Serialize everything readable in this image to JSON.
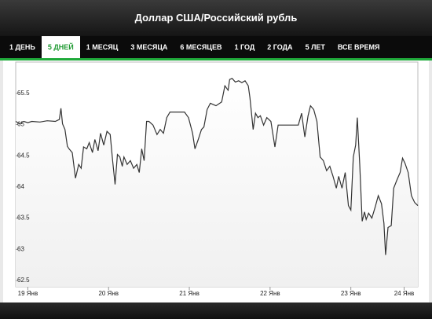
{
  "chart_data": {
    "type": "area",
    "title": "Доллар США/Российский рубль",
    "tabs": [
      "1 ДЕНЬ",
      "5 ДНЕЙ",
      "1 МЕСЯЦ",
      "3 МЕСЯЦА",
      "6 МЕСЯЦЕВ",
      "1 ГОД",
      "2 ГОДА",
      "5 ЛЕТ",
      "ВСЕ ВРЕМЯ"
    ],
    "active_tab": 1,
    "x": [
      -0.15,
      -0.1,
      -0.05,
      0,
      0.05,
      0.15,
      0.24,
      0.34,
      0.39,
      0.41,
      0.43,
      0.46,
      0.49,
      0.51,
      0.55,
      0.59,
      0.63,
      0.66,
      0.69,
      0.73,
      0.76,
      0.8,
      0.83,
      0.87,
      0.9,
      0.94,
      0.98,
      1.02,
      1.05,
      1.08,
      1.11,
      1.14,
      1.17,
      1.19,
      1.23,
      1.27,
      1.31,
      1.35,
      1.38,
      1.41,
      1.44,
      1.47,
      1.5,
      1.55,
      1.6,
      1.64,
      1.68,
      1.72,
      1.76,
      1.84,
      1.94,
      1.99,
      2.04,
      2.07,
      2.11,
      2.15,
      2.18,
      2.22,
      2.26,
      2.33,
      2.4,
      2.44,
      2.48,
      2.5,
      2.53,
      2.57,
      2.61,
      2.65,
      2.69,
      2.73,
      2.75,
      2.79,
      2.82,
      2.85,
      2.88,
      2.92,
      2.96,
      3.01,
      3.06,
      3.1,
      3.16,
      3.25,
      3.35,
      3.39,
      3.43,
      3.47,
      3.5,
      3.54,
      3.58,
      3.62,
      3.66,
      3.7,
      3.74,
      3.78,
      3.82,
      3.85,
      3.89,
      3.93,
      3.97,
      4.0,
      4.03,
      4.06,
      4.08,
      4.11,
      4.14,
      4.17,
      4.19,
      4.22,
      4.26,
      4.3,
      4.34,
      4.38,
      4.41,
      4.43,
      4.46,
      4.5,
      4.53,
      4.57,
      4.61,
      4.64,
      4.67,
      4.71,
      4.75,
      4.79,
      4.83
    ],
    "values": [
      65.05,
      65.01,
      65.05,
      65.03,
      65.05,
      65.04,
      65.06,
      65.05,
      65.08,
      65.26,
      65.01,
      64.92,
      64.65,
      64.61,
      64.55,
      64.14,
      64.36,
      64.3,
      64.64,
      64.61,
      64.71,
      64.55,
      64.76,
      64.58,
      64.86,
      64.67,
      64.89,
      64.84,
      64.42,
      64.04,
      64.52,
      64.48,
      64.33,
      64.48,
      64.36,
      64.42,
      64.3,
      64.36,
      64.23,
      64.61,
      64.42,
      65.05,
      65.05,
      64.99,
      64.84,
      64.92,
      64.86,
      65.11,
      65.2,
      65.2,
      65.2,
      65.11,
      64.86,
      64.61,
      64.76,
      64.92,
      64.96,
      65.24,
      65.34,
      65.3,
      65.36,
      65.62,
      65.55,
      65.72,
      65.74,
      65.68,
      65.7,
      65.67,
      65.7,
      65.62,
      65.43,
      64.92,
      65.18,
      65.11,
      65.14,
      64.99,
      65.11,
      65.05,
      64.64,
      64.99,
      64.99,
      64.99,
      64.99,
      65.18,
      64.8,
      65.14,
      65.3,
      65.24,
      65.05,
      64.48,
      64.42,
      64.26,
      64.33,
      64.17,
      63.98,
      64.17,
      63.98,
      64.23,
      63.7,
      63.63,
      64.48,
      64.67,
      65.11,
      64.36,
      63.45,
      63.6,
      63.48,
      63.58,
      63.5,
      63.67,
      63.86,
      63.73,
      63.42,
      62.91,
      63.35,
      63.38,
      63.98,
      64.11,
      64.23,
      64.46,
      64.38,
      64.23,
      63.86,
      63.75,
      63.7
    ],
    "color": "#333333",
    "fill": "#f0f0f0",
    "xlim": [
      -0.15,
      4.83
    ],
    "xticks": [
      {
        "value": 0,
        "label": "19 Янв"
      },
      {
        "value": 1,
        "label": "20 Янв"
      },
      {
        "value": 2,
        "label": "21 Янв"
      },
      {
        "value": 3,
        "label": "22 Янв"
      },
      {
        "value": 4,
        "label": "23 Янв"
      },
      {
        "value": 4.66,
        "label": "24 Янв"
      }
    ],
    "ylim": [
      62.4,
      66
    ],
    "yticks": [
      62.5,
      63,
      63.5,
      64,
      64.5,
      65,
      65.5
    ],
    "grid": false
  }
}
